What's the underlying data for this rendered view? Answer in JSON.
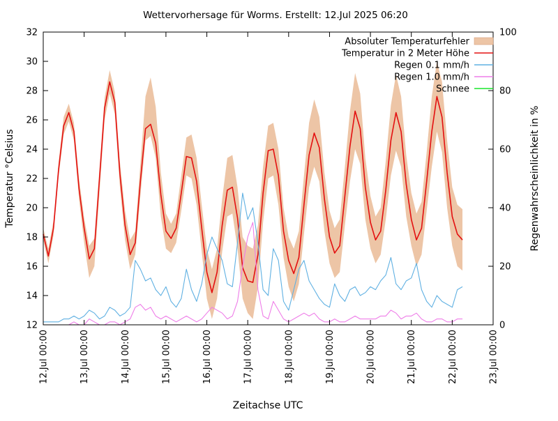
{
  "title": "Wettervorhersage für Worms. Erstellt: 12.Jul 2025 06:20",
  "chart_data": {
    "type": "line",
    "title": "Wettervorhersage für Worms. Erstellt: 12.Jul 2025 06:20",
    "x_axis": {
      "label": "Zeitachse UTC",
      "range_hours": [
        0,
        264
      ],
      "tick_every_hours": 24,
      "tick_labels": [
        "12.Jul 00:00",
        "13.Jul 00:00",
        "14.Jul 00:00",
        "15.Jul 00:00",
        "16.Jul 00:00",
        "17.Jul 00:00",
        "18.Jul 00:00",
        "19.Jul 00:00",
        "20.Jul 00:00",
        "21.Jul 00:00",
        "22.Jul 00:00",
        "23.Jul 00:00"
      ]
    },
    "y_left": {
      "label": "Temperatur °Celsius",
      "min": 12,
      "max": 32,
      "tick_step": 2
    },
    "y_right": {
      "label": "Regenwahrscheinlichkeit in %",
      "min": 0,
      "max": 100,
      "tick_step": 20
    },
    "legend_position": "top-right",
    "time_start": "12.Jul 00:00",
    "time_step_hours": 3,
    "series": [
      {
        "name": "Absoluter Temperaturfehler",
        "type": "band",
        "axis": "left",
        "color": "#edc5a6",
        "upper": [
          18.6,
          17.2,
          19.1,
          23.1,
          26.2,
          27.1,
          25.8,
          22.0,
          19.3,
          17.4,
          17.9,
          22.7,
          27.5,
          29.4,
          27.9,
          23.1,
          19.8,
          17.8,
          18.4,
          23.0,
          27.6,
          28.9,
          26.9,
          22.4,
          19.6,
          18.9,
          19.6,
          22.2,
          24.8,
          25.0,
          23.4,
          20.2,
          17.2,
          15.8,
          17.2,
          20.6,
          23.4,
          23.6,
          21.4,
          18.0,
          17.4,
          17.2,
          18.8,
          22.8,
          25.6,
          25.8,
          24.0,
          20.0,
          18.0,
          17.2,
          18.4,
          22.2,
          25.8,
          27.4,
          26.2,
          22.4,
          19.8,
          18.6,
          19.2,
          22.8,
          26.6,
          29.2,
          27.8,
          23.4,
          20.8,
          19.4,
          20.0,
          23.2,
          27.0,
          29.1,
          27.6,
          23.6,
          21.0,
          19.6,
          20.4,
          23.8,
          27.6,
          30.0,
          28.6,
          24.6,
          21.4,
          20.2,
          19.9
        ],
        "lower": [
          17.8,
          16.2,
          18.1,
          22.1,
          25.0,
          25.9,
          24.6,
          20.6,
          17.6,
          15.2,
          16.0,
          21.0,
          26.0,
          27.8,
          26.4,
          21.4,
          17.8,
          15.8,
          16.8,
          20.8,
          24.6,
          24.9,
          23.4,
          19.4,
          17.2,
          16.9,
          17.6,
          19.8,
          22.2,
          22.0,
          20.2,
          17.0,
          13.8,
          12.4,
          13.8,
          17.0,
          19.4,
          19.6,
          17.2,
          13.8,
          12.8,
          12.4,
          14.6,
          19.0,
          22.0,
          22.2,
          20.2,
          16.6,
          14.6,
          13.6,
          14.8,
          18.2,
          21.4,
          22.8,
          21.8,
          18.4,
          16.2,
          15.2,
          15.6,
          18.8,
          21.8,
          24.0,
          23.0,
          19.2,
          17.2,
          16.2,
          16.8,
          19.2,
          22.2,
          23.9,
          22.8,
          19.4,
          17.4,
          16.0,
          16.8,
          19.8,
          22.8,
          25.2,
          23.8,
          20.0,
          17.4,
          16.0,
          15.7
        ]
      },
      {
        "name": "Temperatur in 2 Meter Höhe",
        "type": "line",
        "axis": "left",
        "color": "#e31010",
        "values": [
          18.2,
          16.7,
          18.6,
          22.6,
          25.6,
          26.5,
          25.2,
          21.3,
          18.6,
          16.5,
          17.2,
          22.0,
          26.8,
          28.6,
          27.2,
          22.3,
          18.8,
          16.8,
          17.6,
          21.8,
          25.4,
          25.7,
          24.4,
          20.9,
          18.4,
          17.9,
          18.6,
          21.0,
          23.5,
          23.4,
          21.8,
          18.6,
          15.6,
          14.2,
          15.6,
          18.8,
          21.2,
          21.4,
          19.3,
          15.9,
          15.0,
          14.9,
          16.8,
          21.0,
          23.9,
          24.0,
          22.2,
          18.4,
          16.4,
          15.5,
          16.6,
          20.2,
          23.6,
          25.1,
          24.1,
          20.6,
          18.0,
          16.9,
          17.4,
          20.8,
          24.2,
          26.6,
          25.4,
          21.4,
          19.0,
          17.8,
          18.4,
          21.2,
          24.6,
          26.5,
          25.2,
          21.6,
          19.2,
          17.8,
          18.6,
          21.8,
          25.2,
          27.6,
          26.2,
          22.4,
          19.4,
          18.2,
          17.8
        ]
      },
      {
        "name": "Regen 0.1 mm/h",
        "type": "line",
        "axis": "right",
        "color": "#5fb0e2",
        "values": [
          1,
          1,
          1,
          1,
          2,
          2,
          3,
          2,
          3,
          5,
          4,
          2,
          3,
          6,
          5,
          3,
          4,
          6,
          22,
          19,
          15,
          16,
          12,
          10,
          13,
          8,
          6,
          9,
          19,
          12,
          8,
          14,
          24,
          30,
          26,
          22,
          14,
          13,
          28,
          45,
          36,
          40,
          28,
          12,
          10,
          26,
          22,
          8,
          5,
          12,
          19,
          22,
          15,
          12,
          9,
          7,
          6,
          14,
          10,
          8,
          12,
          13,
          10,
          11,
          13,
          12,
          15,
          17,
          23,
          14,
          12,
          15,
          16,
          21,
          12,
          8,
          6,
          10,
          8,
          7,
          6,
          12,
          13
        ]
      },
      {
        "name": "Regen 1.0 mm/h",
        "type": "line",
        "axis": "right",
        "color": "#ee7de8",
        "values": [
          0,
          0,
          0,
          0,
          0,
          0,
          1,
          0,
          0,
          2,
          1,
          0,
          0,
          1,
          1,
          0,
          1,
          2,
          6,
          7,
          5,
          6,
          3,
          2,
          3,
          2,
          1,
          2,
          3,
          2,
          1,
          2,
          4,
          6,
          5,
          4,
          2,
          3,
          8,
          20,
          30,
          35,
          12,
          3,
          2,
          8,
          5,
          2,
          1,
          2,
          3,
          4,
          3,
          4,
          2,
          1,
          1,
          2,
          1,
          1,
          2,
          3,
          2,
          2,
          2,
          2,
          3,
          3,
          5,
          4,
          2,
          3,
          3,
          4,
          2,
          1,
          1,
          2,
          2,
          1,
          1,
          2,
          2
        ]
      },
      {
        "name": "Schnee",
        "type": "line",
        "axis": "right",
        "color": "#19e52c",
        "values": []
      }
    ]
  }
}
